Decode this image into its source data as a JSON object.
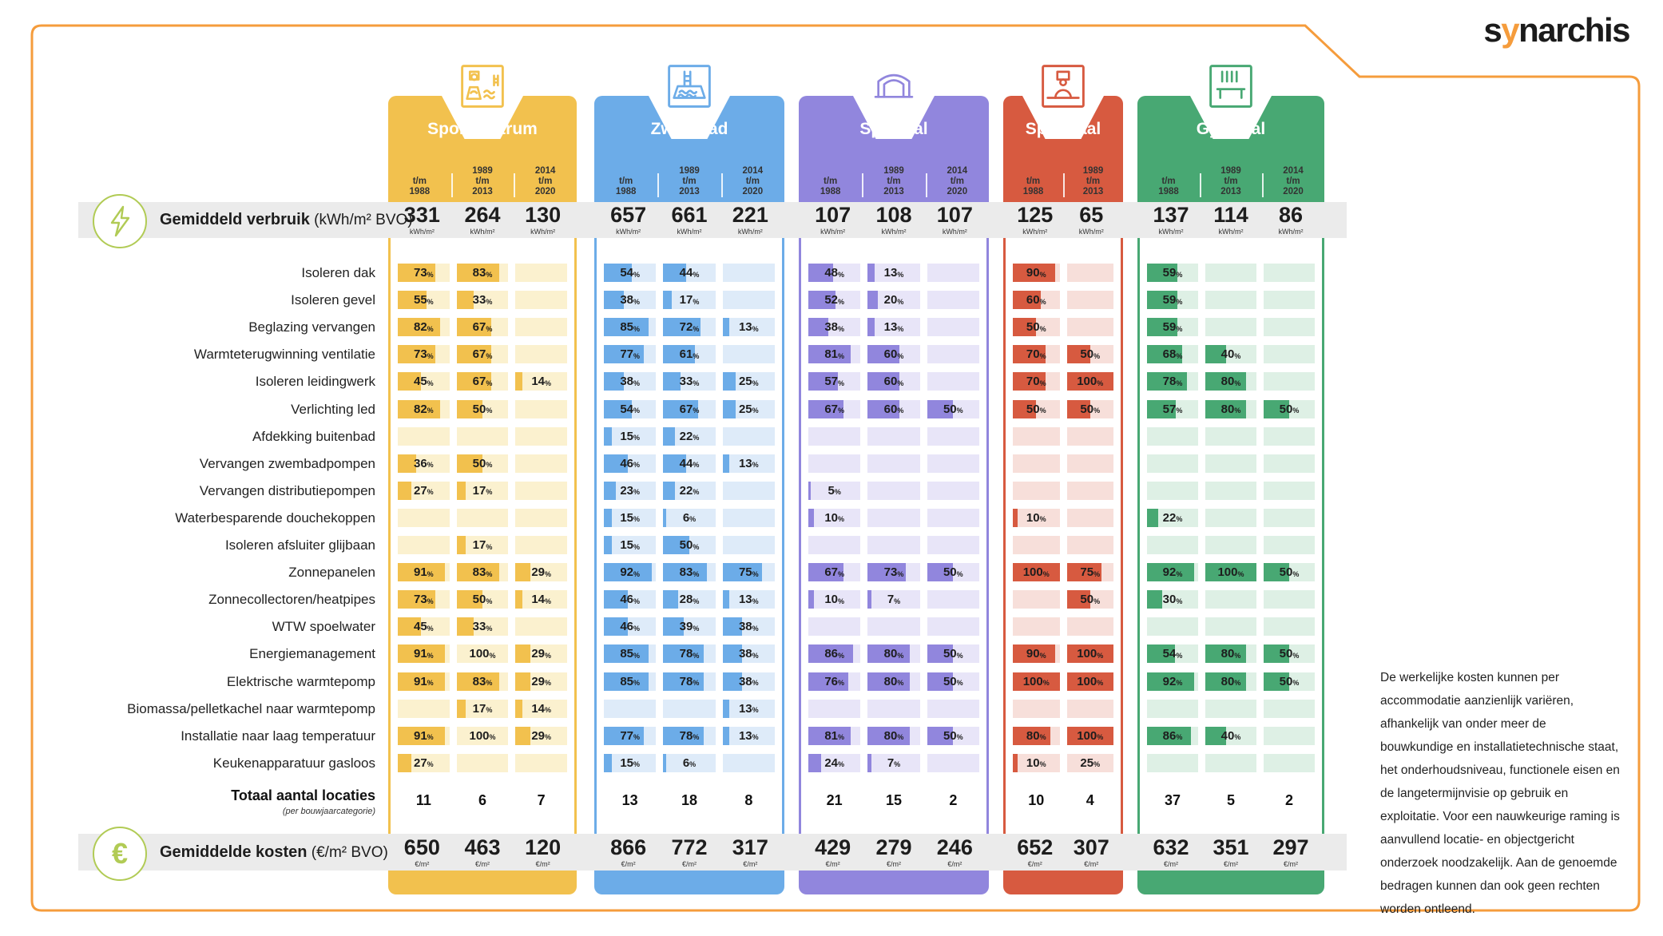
{
  "logo": {
    "part1": "s",
    "accent": "y",
    "part2": "narchis",
    "accent_color": "#F59C3C"
  },
  "frame": {
    "border_color": "#F59C3C"
  },
  "accent": {
    "icon_green": "#B1CB55",
    "band_gray": "#EBEBEB"
  },
  "bands": {
    "verbruik": {
      "bold": "Gemiddeld verbruik",
      "unit": "(kWh/m² BVO)",
      "value_unit": "kWh/m²"
    },
    "kosten": {
      "bold": "Gemiddelde kosten",
      "unit": "(€/m² BVO)",
      "value_unit": "€/m²"
    }
  },
  "totaal": {
    "label": "Totaal aantal locaties",
    "sub": "(per bouwjaarcategorie)"
  },
  "disclaimer": "De werkelijke kosten kunnen per accommodatie aanzienlijk variëren, afhankelijk van onder meer de bouwkundige en installatietechnische staat, het onderhoudsniveau, functionele eisen en de langetermijnvisie op gebruik en exploitatie. Voor een nauwkeurige raming is aanvullend locatie- en objectgericht onderzoek noodzakelijk. Aan de genoemde bedragen kunnen dan ook geen rechten worden ontleend.",
  "chart_data": {
    "type": "bar",
    "categories": [
      "Isoleren dak",
      "Isoleren gevel",
      "Beglazing vervangen",
      "Warmteterugwinning ventilatie",
      "Isoleren leidingwerk",
      "Verlichting led",
      "Afdekking buitenbad",
      "Vervangen zwembadpompen",
      "Vervangen distributiepompen",
      "Waterbesparende douchekoppen",
      "Isoleren afsluiter glijbaan",
      "Zonnepanelen",
      "Zonnecollectoren/heatpipes",
      "WTW spoelwater",
      "Energiemanagement",
      "Elektrische warmtepomp",
      "Biomassa/pelletkachel naar warmtepomp",
      "Installatie naar laag temperatuur",
      "Keukenapparatuur gasloos"
    ],
    "value_format": "percent",
    "facilities": [
      {
        "name": "Sportcentrum",
        "icon": "sportcentrum-icon",
        "color": "#F2C14E",
        "light": "#FBF1CF",
        "years": [
          "t/m 1988",
          "1989 t/m 2013",
          "2014 t/m 2020"
        ],
        "verbruik_kwh_m2": [
          331,
          264,
          130
        ],
        "maatregel_pct": [
          [
            73,
            83,
            null
          ],
          [
            55,
            33,
            null
          ],
          [
            82,
            67,
            null
          ],
          [
            73,
            67,
            null
          ],
          [
            45,
            67,
            14
          ],
          [
            82,
            50,
            null
          ],
          [
            null,
            null,
            null
          ],
          [
            36,
            50,
            null
          ],
          [
            27,
            17,
            null
          ],
          [
            null,
            null,
            null
          ],
          [
            null,
            17,
            null
          ],
          [
            91,
            83,
            29
          ],
          [
            73,
            50,
            14
          ],
          [
            45,
            33,
            null
          ],
          [
            91,
            100,
            29
          ],
          [
            91,
            83,
            29
          ],
          [
            null,
            17,
            14
          ],
          [
            91,
            100,
            29
          ],
          [
            27,
            null,
            null
          ]
        ],
        "fill_overrides": {
          "14_1": 0,
          "17_1": 0
        },
        "totaal_locaties": [
          11,
          6,
          7
        ],
        "kosten_eur_m2": [
          650,
          463,
          120
        ]
      },
      {
        "name": "Zwembad",
        "icon": "zwembad-icon",
        "color": "#6CACE8",
        "light": "#DEEBF9",
        "years": [
          "t/m 1988",
          "1989 t/m 2013",
          "2014 t/m 2020"
        ],
        "verbruik_kwh_m2": [
          657,
          661,
          221
        ],
        "maatregel_pct": [
          [
            54,
            44,
            null
          ],
          [
            38,
            17,
            null
          ],
          [
            85,
            72,
            13
          ],
          [
            77,
            61,
            null
          ],
          [
            38,
            33,
            25
          ],
          [
            54,
            67,
            25
          ],
          [
            15,
            22,
            null
          ],
          [
            46,
            44,
            13
          ],
          [
            23,
            22,
            null
          ],
          [
            15,
            6,
            null
          ],
          [
            15,
            50,
            null
          ],
          [
            92,
            83,
            75
          ],
          [
            46,
            28,
            13
          ],
          [
            46,
            39,
            38
          ],
          [
            85,
            78,
            38
          ],
          [
            85,
            78,
            38
          ],
          [
            null,
            null,
            13
          ],
          [
            77,
            78,
            13
          ],
          [
            15,
            6,
            null
          ]
        ],
        "fill_overrides": {},
        "totaal_locaties": [
          13,
          18,
          8
        ],
        "kosten_eur_m2": [
          866,
          772,
          317
        ]
      },
      {
        "name": "Sporthal",
        "icon": "sporthal-icon",
        "color": "#9186DD",
        "light": "#E8E5F8",
        "years": [
          "t/m 1988",
          "1989 t/m 2013",
          "2014 t/m 2020"
        ],
        "verbruik_kwh_m2": [
          107,
          108,
          107
        ],
        "maatregel_pct": [
          [
            48,
            13,
            null
          ],
          [
            52,
            20,
            null
          ],
          [
            38,
            13,
            null
          ],
          [
            81,
            60,
            null
          ],
          [
            57,
            60,
            null
          ],
          [
            67,
            60,
            50
          ],
          [
            null,
            null,
            null
          ],
          [
            null,
            null,
            null
          ],
          [
            5,
            null,
            null
          ],
          [
            10,
            null,
            null
          ],
          [
            null,
            null,
            null
          ],
          [
            67,
            73,
            50
          ],
          [
            10,
            7,
            null
          ],
          [
            null,
            null,
            null
          ],
          [
            86,
            80,
            50
          ],
          [
            76,
            80,
            50
          ],
          [
            null,
            null,
            null
          ],
          [
            81,
            80,
            50
          ],
          [
            24,
            7,
            null
          ]
        ],
        "fill_overrides": {},
        "totaal_locaties": [
          21,
          15,
          2
        ],
        "kosten_eur_m2": [
          429,
          279,
          246
        ]
      },
      {
        "name": "Sportzaal",
        "icon": "sportzaal-icon",
        "color": "#D75A40",
        "light": "#F7DFDA",
        "years": [
          "t/m 1988",
          "1989 t/m 2013"
        ],
        "verbruik_kwh_m2": [
          125,
          65
        ],
        "maatregel_pct": [
          [
            90,
            null
          ],
          [
            60,
            null
          ],
          [
            50,
            null
          ],
          [
            70,
            50
          ],
          [
            70,
            100
          ],
          [
            50,
            50
          ],
          [
            null,
            null
          ],
          [
            null,
            null
          ],
          [
            null,
            null
          ],
          [
            10,
            null
          ],
          [
            null,
            null
          ],
          [
            100,
            75
          ],
          [
            null,
            50
          ],
          [
            null,
            null
          ],
          [
            90,
            100
          ],
          [
            100,
            100
          ],
          [
            null,
            null
          ],
          [
            80,
            100
          ],
          [
            10,
            25
          ]
        ],
        "fill_overrides": {
          "18_1": 0
        },
        "totaal_locaties": [
          10,
          4
        ],
        "kosten_eur_m2": [
          652,
          307
        ]
      },
      {
        "name": "Gymzaal",
        "icon": "gymzaal-icon",
        "color": "#48A873",
        "light": "#DEF0E5",
        "years": [
          "t/m 1988",
          "1989 t/m 2013",
          "2014 t/m 2020"
        ],
        "verbruik_kwh_m2": [
          137,
          114,
          86
        ],
        "maatregel_pct": [
          [
            59,
            null,
            null
          ],
          [
            59,
            null,
            null
          ],
          [
            59,
            null,
            null
          ],
          [
            68,
            40,
            null
          ],
          [
            78,
            80,
            null
          ],
          [
            57,
            80,
            50
          ],
          [
            null,
            null,
            null
          ],
          [
            null,
            null,
            null
          ],
          [
            null,
            null,
            null
          ],
          [
            22,
            null,
            null
          ],
          [
            null,
            null,
            null
          ],
          [
            92,
            100,
            50
          ],
          [
            30,
            null,
            null
          ],
          [
            null,
            null,
            null
          ],
          [
            54,
            80,
            50
          ],
          [
            92,
            80,
            50
          ],
          [
            null,
            null,
            null
          ],
          [
            86,
            40,
            null
          ],
          [
            null,
            null,
            null
          ]
        ],
        "fill_overrides": {},
        "totaal_locaties": [
          37,
          5,
          2
        ],
        "kosten_eur_m2": [
          632,
          351,
          297
        ]
      }
    ]
  }
}
